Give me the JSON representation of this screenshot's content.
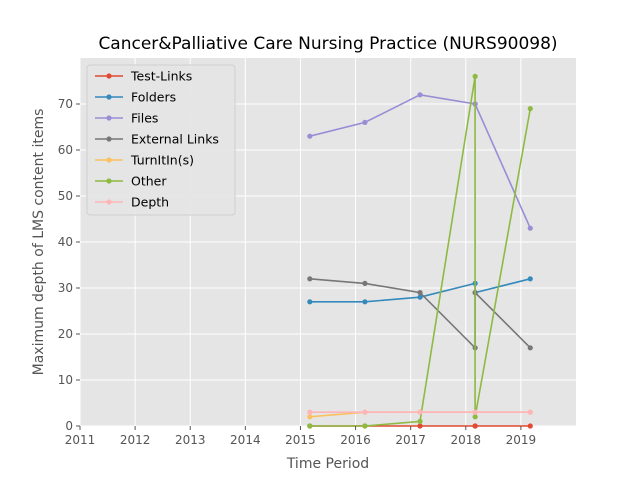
{
  "chart_data": {
    "type": "line",
    "title": "Cancer&Palliative Care Nursing Practice (NURS90098)",
    "xlabel": "Time Period",
    "ylabel": "Maximum depth of LMS content items",
    "xlim": [
      2011,
      2020
    ],
    "ylim": [
      0,
      80
    ],
    "xticks": [
      "2011",
      "2012",
      "2013",
      "2014",
      "2015",
      "2016",
      "2017",
      "2018",
      "2019"
    ],
    "yticks": [
      "0",
      "10",
      "20",
      "30",
      "40",
      "50",
      "60",
      "70"
    ],
    "grid": true,
    "legend_position": "top-left",
    "series": [
      {
        "name": "Test-Links",
        "color": "#E24A33",
        "x": [
          2015.17,
          2016.17,
          2017.17,
          2018.17,
          2018.17,
          2019.17
        ],
        "y": [
          0,
          0,
          0,
          0,
          0,
          0
        ]
      },
      {
        "name": "Folders",
        "color": "#348ABD",
        "x": [
          2015.17,
          2016.17,
          2017.17,
          2018.17,
          2018.17,
          2019.17
        ],
        "y": [
          27,
          27,
          28,
          31,
          29,
          32
        ]
      },
      {
        "name": "Files",
        "color": "#988ED5",
        "x": [
          2015.17,
          2016.17,
          2017.17,
          2018.17,
          2018.17,
          2019.17
        ],
        "y": [
          63,
          66,
          72,
          70,
          70,
          43
        ]
      },
      {
        "name": "External Links",
        "color": "#777777",
        "x": [
          2015.17,
          2016.17,
          2017.17,
          2018.17,
          2018.17,
          2019.17
        ],
        "y": [
          32,
          31,
          29,
          17,
          29,
          17
        ]
      },
      {
        "name": "TurnItIn(s)",
        "color": "#FBC15E",
        "x": [
          2015.17,
          2016.17,
          2017.17,
          2018.17,
          2018.17,
          2019.17
        ],
        "y": [
          2,
          3,
          3,
          3,
          3,
          3
        ]
      },
      {
        "name": "Other",
        "color": "#8EBA42",
        "x": [
          2015.17,
          2016.17,
          2017.17,
          2018.17,
          2018.17,
          2019.17
        ],
        "y": [
          0,
          0,
          1,
          76,
          2,
          69
        ]
      },
      {
        "name": "Depth",
        "color": "#FFB5B8",
        "x": [
          2015.17,
          2016.17,
          2017.17,
          2018.17,
          2018.17,
          2019.17
        ],
        "y": [
          3,
          3,
          3,
          3,
          3,
          3
        ]
      }
    ]
  }
}
